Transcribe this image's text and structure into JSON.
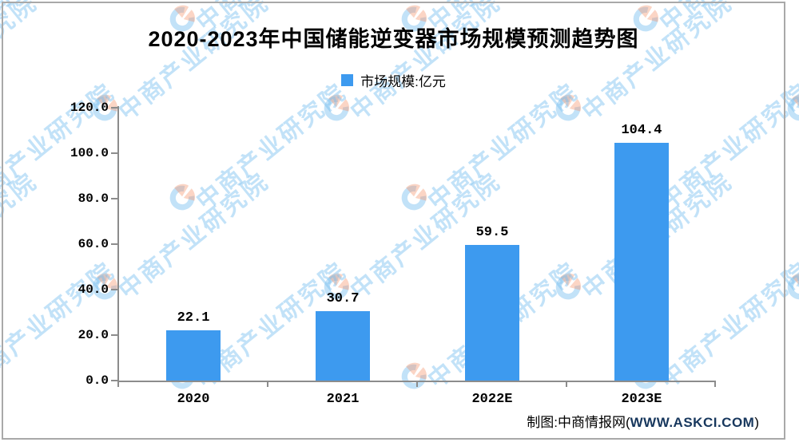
{
  "title": "2020-2023年中国储能逆变器市场规模预测趋势图",
  "legend": {
    "label": "市场规模:亿元",
    "color": "#3d9aef"
  },
  "source": {
    "prefix": "制图:中商情报网(",
    "url": "WWW.ASKCI.COM",
    "suffix": ")"
  },
  "watermark": {
    "text": "中商产业研究院"
  },
  "colors": {
    "bar": "#3d9aef",
    "axis": "#8c8c8c",
    "frame": "#a9a9a9",
    "watermark_blue": "rgba(120,190,240,0.45)",
    "watermark_salmon": "rgba(246,150,110,0.40)",
    "url_text": "#17375d"
  },
  "chart_data": {
    "type": "bar",
    "title": "2020-2023年中国储能逆变器市场规模预测趋势图",
    "series_name": "市场规模:亿元",
    "categories": [
      "2020",
      "2021",
      "2022E",
      "2023E"
    ],
    "values": [
      22.1,
      30.7,
      59.5,
      104.4
    ],
    "data_labels": [
      "22.1",
      "30.7",
      "59.5",
      "104.4"
    ],
    "unit": "亿元",
    "ylim": [
      0,
      120
    ],
    "ytick_interval": 20,
    "yticks": [
      "120.0",
      "100.0",
      "80.0",
      "60.0",
      "40.0",
      "20.0",
      "0.0"
    ],
    "xlabel": "",
    "ylabel": "",
    "grid": false,
    "legend_position": "top",
    "bar_color": "#3d9aef"
  }
}
